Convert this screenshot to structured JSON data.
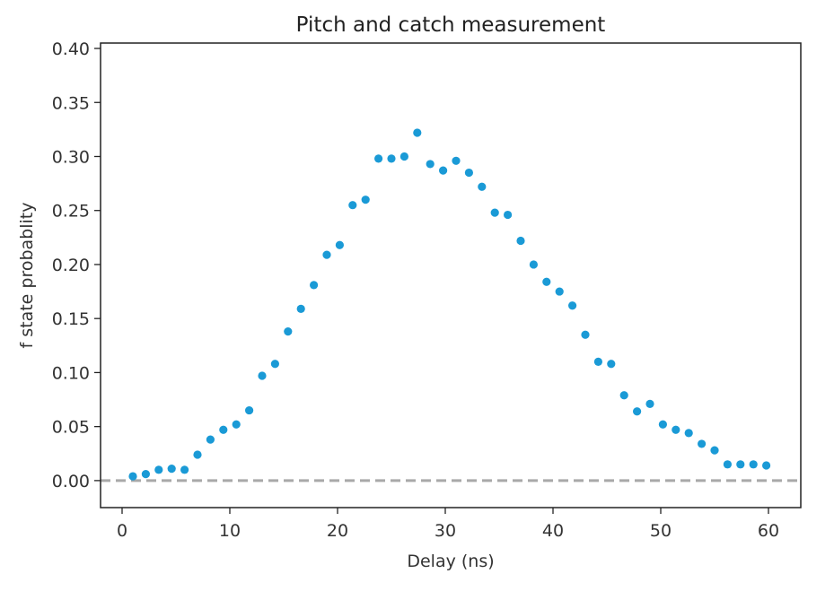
{
  "chart_data": {
    "type": "scatter",
    "title": "Pitch and catch measurement",
    "xlabel": "Delay (ns)",
    "ylabel": "f state probablity",
    "xlim": [
      -2,
      63
    ],
    "ylim": [
      -0.025,
      0.405
    ],
    "xticks": [
      0,
      10,
      20,
      30,
      40,
      50,
      60
    ],
    "yticks": [
      0.0,
      0.05,
      0.1,
      0.15,
      0.2,
      0.25,
      0.3,
      0.35,
      0.4
    ],
    "ytick_labels": [
      "0.00",
      "0.05",
      "0.10",
      "0.15",
      "0.20",
      "0.25",
      "0.30",
      "0.35",
      "0.40"
    ],
    "grid": false,
    "legend": "none",
    "series": [
      {
        "color": "#1a9ad6",
        "x": [
          1.0,
          2.2,
          3.4,
          4.6,
          5.8,
          7.0,
          8.2,
          9.4,
          10.6,
          11.8,
          13.0,
          14.2,
          15.4,
          16.6,
          17.8,
          19.0,
          20.2,
          21.4,
          22.6,
          23.8,
          25.0,
          26.2,
          27.4,
          28.6,
          29.8,
          31.0,
          32.2,
          33.4,
          34.6,
          35.8,
          37.0,
          38.2,
          39.4,
          40.6,
          41.8,
          43.0,
          44.2,
          45.4,
          46.6,
          47.8,
          49.0,
          50.2,
          51.4,
          52.6,
          53.8,
          55.0,
          56.2,
          57.4,
          58.6,
          59.8
        ],
        "y": [
          0.004,
          0.006,
          0.01,
          0.011,
          0.01,
          0.024,
          0.038,
          0.047,
          0.052,
          0.065,
          0.097,
          0.108,
          0.138,
          0.159,
          0.181,
          0.209,
          0.218,
          0.255,
          0.26,
          0.298,
          0.298,
          0.3,
          0.322,
          0.293,
          0.287,
          0.296,
          0.285,
          0.272,
          0.248,
          0.246,
          0.222,
          0.2,
          0.184,
          0.175,
          0.162,
          0.135,
          0.11,
          0.108,
          0.079,
          0.064,
          0.071,
          0.052,
          0.047,
          0.044,
          0.034,
          0.028,
          0.015,
          0.015,
          0.015,
          0.014
        ]
      }
    ],
    "reference_line": {
      "y": 0.0,
      "style": "dashed",
      "color": "#a9a9a9"
    },
    "frame_color": "#222222"
  }
}
